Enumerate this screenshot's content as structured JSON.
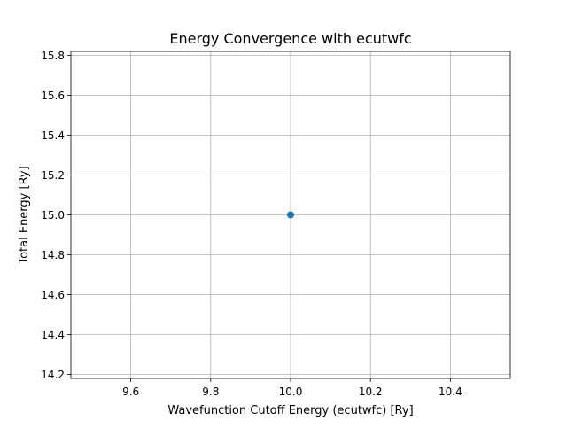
{
  "chart_data": {
    "type": "scatter",
    "title": "Energy Convergence with ecutwfc",
    "xlabel": "Wavefunction Cutoff Energy (ecutwfc) [Ry]",
    "ylabel": "Total Energy [Ry]",
    "xlim": [
      9.45,
      10.55
    ],
    "ylim": [
      14.18,
      15.82
    ],
    "xticks": [
      9.6,
      9.8,
      10.0,
      10.2,
      10.4
    ],
    "xtick_labels": [
      "9.6",
      "9.8",
      "10.0",
      "10.2",
      "10.4"
    ],
    "yticks": [
      14.2,
      14.4,
      14.6,
      14.8,
      15.0,
      15.2,
      15.4,
      15.6,
      15.8
    ],
    "ytick_labels": [
      "14.2",
      "14.4",
      "14.6",
      "14.8",
      "15.0",
      "15.2",
      "15.4",
      "15.6",
      "15.8"
    ],
    "grid": true,
    "marker": "circle",
    "series": [
      {
        "color": "#1f77b4",
        "x": [
          10.0
        ],
        "y": [
          15.0
        ]
      }
    ]
  }
}
